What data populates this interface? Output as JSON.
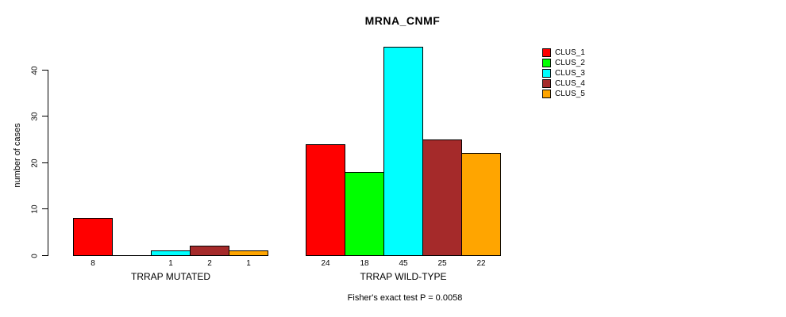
{
  "chart_data": {
    "type": "bar",
    "title": "MRNA_CNMF",
    "ylabel": "number of cases",
    "xlabel": "",
    "caption": "Fisher's exact test P = 0.0058",
    "yticks": [
      0,
      10,
      20,
      30,
      40
    ],
    "ylim": [
      0,
      45
    ],
    "grid": false,
    "legend_position": "right-top",
    "groups": [
      "TRRAP MUTATED",
      "TRRAP WILD-TYPE"
    ],
    "series": [
      {
        "name": "CLUS_1",
        "color": "#ff0000",
        "values": [
          8,
          24
        ]
      },
      {
        "name": "CLUS_2",
        "color": "#00ff00",
        "values": [
          0,
          18
        ]
      },
      {
        "name": "CLUS_3",
        "color": "#00ffff",
        "values": [
          1,
          45
        ]
      },
      {
        "name": "CLUS_4",
        "color": "#a52a2a",
        "values": [
          2,
          25
        ]
      },
      {
        "name": "CLUS_5",
        "color": "#ffa500",
        "values": [
          1,
          22
        ]
      }
    ],
    "hide_zero_value_labels": true,
    "colors": {
      "background": "#ffffff",
      "axis": "#000000",
      "text": "#000000"
    }
  }
}
